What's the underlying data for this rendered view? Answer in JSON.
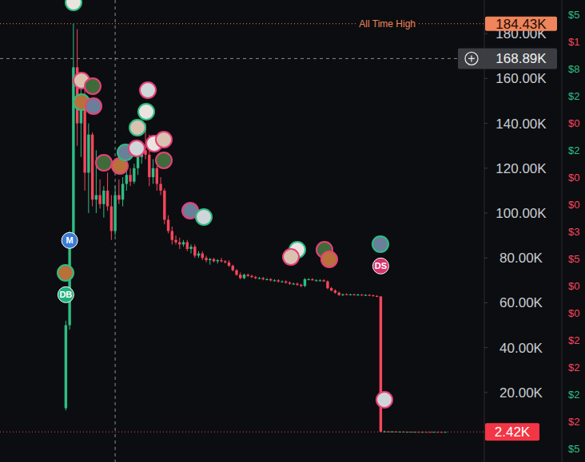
{
  "chart_data": {
    "type": "candlestick",
    "categories": [
      null,
      null,
      null,
      null,
      null,
      null,
      null,
      null,
      null,
      null,
      null,
      null,
      null,
      null,
      null,
      null,
      null,
      null,
      null,
      null,
      null,
      null,
      null,
      null,
      null,
      null,
      null,
      null,
      null,
      null,
      null,
      null,
      null,
      null,
      null,
      null,
      null,
      null,
      null,
      null,
      null,
      null,
      null,
      null,
      null,
      null,
      null,
      null,
      null,
      null,
      null,
      null,
      null,
      null,
      null,
      null,
      null,
      null,
      null,
      null,
      null,
      null,
      null,
      null,
      null,
      null,
      null,
      null,
      null,
      null,
      null,
      null,
      null,
      null,
      null,
      null,
      null,
      null,
      null,
      null,
      null,
      null,
      null,
      null,
      null,
      null,
      null,
      null,
      null,
      null,
      null,
      null,
      null,
      null,
      null,
      null,
      null,
      null,
      null,
      null,
      null
    ],
    "open": [
      13,
      50,
      88,
      165,
      140,
      150,
      118,
      135,
      106,
      108,
      104,
      110,
      103,
      92,
      108,
      106,
      113,
      117,
      114,
      120,
      125,
      128,
      126,
      116,
      120,
      113,
      110,
      97,
      92,
      88,
      87,
      86,
      87,
      84,
      85,
      81,
      82,
      80,
      79,
      79.5,
      78.5,
      79,
      78.5,
      78,
      76.5,
      74.5,
      72.5,
      71,
      72.5,
      72,
      71.5,
      71,
      71,
      70.5,
      70.5,
      70,
      70,
      69.5,
      69.5,
      69,
      68.5,
      68.5,
      68,
      67.5,
      70.5,
      70.5,
      70,
      70,
      70,
      69.5,
      66.5,
      65.5,
      64.5,
      63.5,
      63.8,
      63.6,
      63.7,
      63.5,
      63.6,
      63.4,
      63.5,
      63.3,
      63,
      62.8,
      2.5,
      2.6,
      2.55,
      2.6,
      2.5,
      2.55,
      2.45,
      2.48,
      2.44,
      2.46,
      2.42,
      2.44,
      2.43,
      2.41,
      2.43,
      2.42,
      2.41
    ],
    "high": [
      52,
      92,
      184.43,
      182,
      160,
      158,
      140,
      136,
      128,
      115,
      112,
      118,
      108,
      112,
      115,
      116,
      119,
      120,
      122,
      128,
      132,
      140,
      135,
      124,
      121,
      116,
      111,
      99,
      94,
      90,
      89,
      88,
      88,
      86,
      86,
      83,
      83,
      81,
      80,
      80,
      79.5,
      80,
      79,
      79,
      77,
      75,
      73.5,
      73,
      73,
      72.5,
      72,
      71.5,
      71.5,
      71,
      71,
      70.5,
      70.5,
      70,
      70,
      69.5,
      69,
      69,
      68.5,
      71,
      71,
      71,
      70.5,
      70.5,
      70.5,
      70,
      67,
      66,
      65,
      64,
      64.2,
      64,
      64,
      64,
      63.9,
      63.8,
      63.8,
      63.6,
      63.4,
      63,
      3,
      2.8,
      2.7,
      2.65,
      2.6,
      2.6,
      2.5,
      2.52,
      2.5,
      2.48,
      2.46,
      2.47,
      2.46,
      2.45,
      2.45,
      2.44,
      2.44
    ],
    "low": [
      12,
      48,
      85,
      130,
      125,
      110,
      100,
      103,
      100,
      102,
      98,
      101,
      88,
      90,
      104,
      103,
      110,
      112,
      113,
      117,
      122,
      124,
      112,
      113,
      110,
      108,
      95,
      91,
      86,
      86,
      84,
      85,
      83,
      82,
      80,
      80,
      79,
      78,
      77,
      78,
      77.5,
      78,
      77.5,
      76,
      74,
      72,
      70.5,
      70.5,
      71.5,
      71,
      70.5,
      70.5,
      70,
      70,
      69.5,
      69.5,
      69,
      69,
      68.5,
      68,
      68,
      67.5,
      67,
      67,
      70,
      70,
      69.5,
      69.5,
      69.5,
      66,
      65,
      64,
      63,
      63,
      63.4,
      63.3,
      63.3,
      63.2,
      63.2,
      63,
      63,
      62.8,
      62.5,
      2.1,
      2.3,
      2.5,
      2.5,
      2.45,
      2.45,
      2.4,
      2.4,
      2.42,
      2.4,
      2.4,
      2.38,
      2.4,
      2.39,
      2.38,
      2.4,
      2.39,
      2.4
    ],
    "close": [
      50,
      88,
      165,
      140,
      150,
      118,
      135,
      106,
      108,
      104,
      110,
      103,
      92,
      108,
      106,
      113,
      117,
      114,
      120,
      125,
      128,
      126,
      116,
      120,
      113,
      110,
      97,
      92,
      88,
      87,
      86,
      87,
      84,
      85,
      81,
      82,
      80,
      79,
      79.5,
      78.5,
      79,
      78.5,
      78,
      76.5,
      74.5,
      72.5,
      71,
      72.5,
      72,
      71.5,
      71,
      71,
      70.5,
      70.5,
      70,
      70,
      69.5,
      69.5,
      69,
      68.5,
      68.5,
      68,
      67.5,
      70.5,
      70.5,
      70,
      70,
      70,
      69.5,
      66.5,
      65.5,
      64.5,
      63.5,
      63.8,
      63.6,
      63.7,
      63.5,
      63.6,
      63.4,
      63.5,
      63.3,
      63,
      62.8,
      2.5,
      2.6,
      2.55,
      2.6,
      2.5,
      2.55,
      2.45,
      2.48,
      2.44,
      2.46,
      2.42,
      2.44,
      2.43,
      2.41,
      2.43,
      2.42,
      2.41,
      2.42
    ],
    "ylim": [
      -11,
      195
    ],
    "yticks": [
      {
        "value": 20,
        "label": "20.00K"
      },
      {
        "value": 40,
        "label": "40.00K"
      },
      {
        "value": 60,
        "label": "60.00K"
      },
      {
        "value": 80,
        "label": "80.00K"
      },
      {
        "value": 100,
        "label": "100.00K"
      },
      {
        "value": 120,
        "label": "120.00K"
      },
      {
        "value": 140,
        "label": "140.00K"
      },
      {
        "value": 160,
        "label": "160.00K"
      },
      {
        "value": 180,
        "label": "180.00K"
      }
    ],
    "grid": false,
    "tick_labels": "y",
    "annotations": {
      "ath": {
        "text": "All Time High",
        "value": 184.43,
        "label": "184.43K"
      },
      "crosshair": {
        "index": 13,
        "value": 168.89,
        "label": "168.89K"
      },
      "last_price": {
        "value": 2.42,
        "label": "2.42K"
      }
    },
    "events": [
      {
        "label": "DB",
        "index": 0,
        "value": 63.6,
        "color": "#22b07d"
      },
      {
        "label": "M",
        "index": 1,
        "value": 87.8,
        "color": "#3a7bd5"
      },
      {
        "label": "DS",
        "index": 83,
        "value": 76.4,
        "color": "#d6336c"
      }
    ]
  },
  "side_panel": [
    {
      "text": "$5",
      "color": "#2ebd85"
    },
    {
      "text": "$1",
      "color": "#f6465d"
    },
    {
      "text": "$8",
      "color": "#2ebd85"
    },
    {
      "text": "$2",
      "color": "#2ebd85"
    },
    {
      "text": "$0",
      "color": "#f6465d"
    },
    {
      "text": "$2",
      "color": "#2ebd85"
    },
    {
      "text": "$0",
      "color": "#f6465d"
    },
    {
      "text": "$0",
      "color": "#f6465d"
    },
    {
      "text": "$3",
      "color": "#f6465d"
    },
    {
      "text": "$5",
      "color": "#f6465d"
    },
    {
      "text": "$0",
      "color": "#f6465d"
    },
    {
      "text": "$0",
      "color": "#f6465d"
    },
    {
      "text": "$2",
      "color": "#f6465d"
    },
    {
      "text": "$2",
      "color": "#f6465d"
    },
    {
      "text": "$2",
      "color": "#2ebd85"
    },
    {
      "text": "$2",
      "color": "#f6465d"
    },
    {
      "text": "$5",
      "color": "#2ebd85"
    }
  ]
}
